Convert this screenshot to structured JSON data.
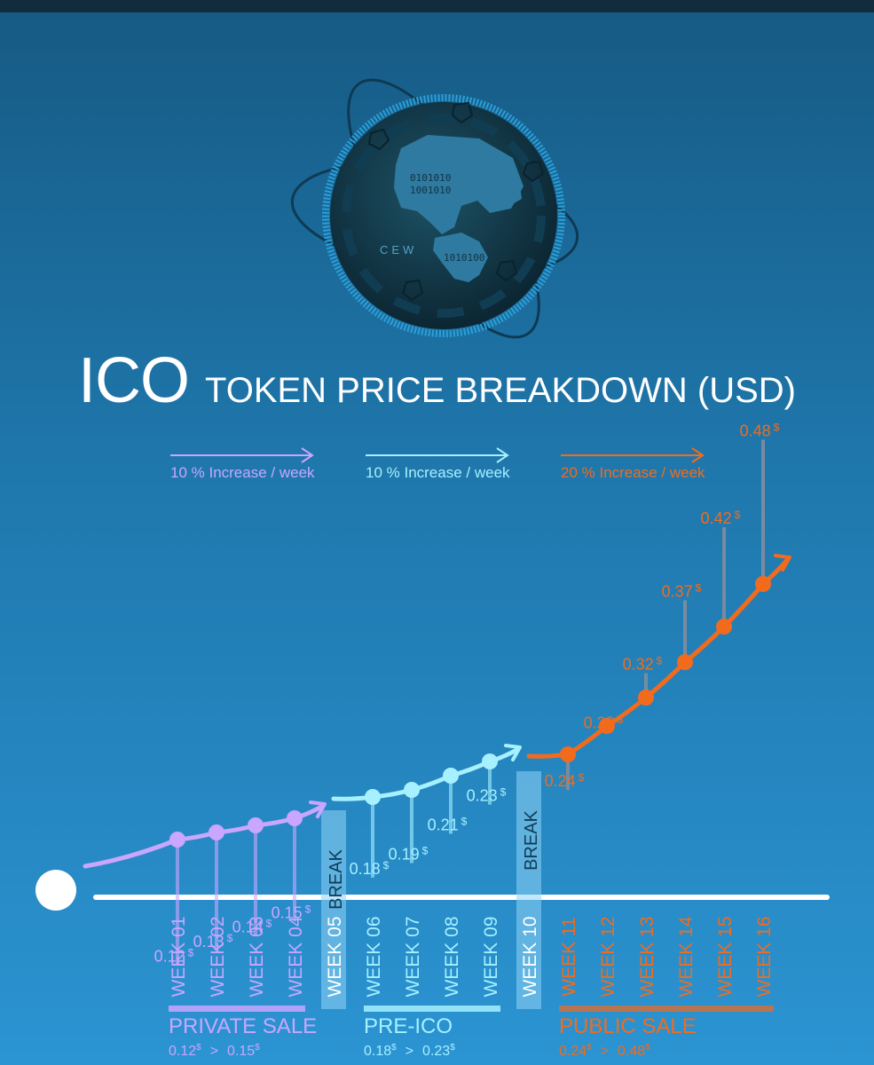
{
  "logo": {
    "text": "CEW"
  },
  "title": {
    "big": "ICO",
    "small": "TOKEN PRICE BREAKDOWN (USD)"
  },
  "colors": {
    "private": "#c9a6ff",
    "pre": "#a6f0ff",
    "public": "#f26b1d",
    "stem": "#7d8c9e",
    "break": "#8fd3f5"
  },
  "chart_data": {
    "type": "line",
    "title": "ICO TOKEN PRICE BREAKDOWN (USD)",
    "currency_suffix": "$",
    "weeks": [
      "WEEK 01",
      "WEEK 02",
      "WEEK 03",
      "WEEK 04",
      "WEEK 05",
      "WEEK 06",
      "WEEK 07",
      "WEEK 08",
      "WEEK 09",
      "WEEK 10",
      "WEEK 11",
      "WEEK 12",
      "WEEK 13",
      "WEEK 14",
      "WEEK 15",
      "WEEK 16"
    ],
    "breaks": [
      {
        "week": "WEEK 05",
        "label": "BREAK"
      },
      {
        "week": "WEEK 10",
        "label": "BREAK"
      }
    ],
    "series": [
      {
        "name": "PRIVATE SALE",
        "range": [
          "0.12",
          "0.15"
        ],
        "rate": "10 % Increase / week",
        "points": [
          {
            "week": "WEEK 01",
            "price": 0.12,
            "label": "0.12"
          },
          {
            "week": "WEEK 02",
            "price": 0.13,
            "label": "0.13"
          },
          {
            "week": "WEEK 03",
            "price": 0.14,
            "label": "0.14"
          },
          {
            "week": "WEEK 04",
            "price": 0.15,
            "label": "0.15"
          }
        ]
      },
      {
        "name": "PRE-ICO",
        "range": [
          "0.18",
          "0.23"
        ],
        "rate": "10 % Increase / week",
        "points": [
          {
            "week": "WEEK 06",
            "price": 0.18,
            "label": "0.18"
          },
          {
            "week": "WEEK 07",
            "price": 0.19,
            "label": "0.19"
          },
          {
            "week": "WEEK 08",
            "price": 0.21,
            "label": "0.21"
          },
          {
            "week": "WEEK 09",
            "price": 0.23,
            "label": "0.23"
          }
        ]
      },
      {
        "name": "PUBLIC SALE",
        "range": [
          "0.24",
          "0.48"
        ],
        "rate": "20 % Increase / week",
        "points": [
          {
            "week": "WEEK 11",
            "price": 0.24,
            "label": "0.24"
          },
          {
            "week": "WEEK 12",
            "price": 0.28,
            "label": "0.28"
          },
          {
            "week": "WEEK 13",
            "price": 0.32,
            "label": "0.32"
          },
          {
            "week": "WEEK 14",
            "price": 0.37,
            "label": "0.37"
          },
          {
            "week": "WEEK 15",
            "price": 0.42,
            "label": "0.42"
          },
          {
            "week": "WEEK 16",
            "price": 0.48,
            "label": "0.48"
          }
        ]
      }
    ]
  }
}
